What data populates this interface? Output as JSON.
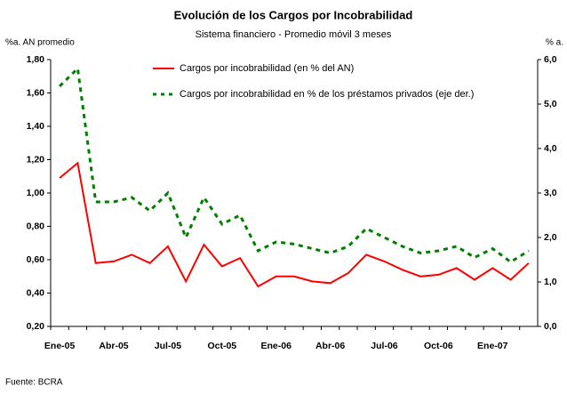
{
  "chart_data": {
    "type": "line",
    "title": "Evolución de los Cargos por Incobrabilidad",
    "subtitle": "Sistema financiero - Promedio móvil 3 meses",
    "y_label": "%a. AN promedio",
    "y2_label": "% a.",
    "source": "Fuente: BCRA",
    "categories": [
      "Ene-05",
      null,
      null,
      "Abr-05",
      null,
      null,
      "Jul-05",
      null,
      null,
      "Oct-05",
      null,
      null,
      "Ene-06",
      null,
      null,
      "Abr-06",
      null,
      null,
      "Jul-06",
      null,
      null,
      "Oct-06",
      null,
      null,
      "Ene-07",
      null,
      null
    ],
    "series": [
      {
        "name": "Cargos por incobrabilidad (en % del AN)",
        "color": "#ff0000",
        "dash": "solid",
        "values": [
          1.09,
          1.18,
          0.58,
          0.59,
          0.63,
          0.58,
          0.68,
          0.47,
          0.69,
          0.56,
          0.61,
          0.44,
          0.5,
          0.5,
          0.47,
          0.46,
          0.52,
          0.63,
          0.59,
          0.54,
          0.5,
          0.51,
          0.55,
          0.48,
          0.55,
          0.48,
          0.58
        ]
      },
      {
        "name": "Cargos por incobrabilidad en % de los préstamos privados (eje der.)",
        "color": "#008000",
        "dash": "dashed",
        "axis": "y2",
        "values": [
          5.4,
          5.8,
          2.8,
          2.8,
          2.9,
          2.6,
          3.0,
          2.0,
          2.9,
          2.3,
          2.5,
          1.7,
          1.9,
          1.85,
          1.75,
          1.65,
          1.8,
          2.2,
          2.0,
          1.8,
          1.65,
          1.7,
          1.8,
          1.55,
          1.75,
          1.45,
          1.7
        ]
      }
    ],
    "ylim": [
      0.2,
      1.8
    ],
    "yticks": [
      {
        "value": 0.2,
        "label": "0,20"
      },
      {
        "value": 0.4,
        "label": "0,40"
      },
      {
        "value": 0.6,
        "label": "0,60"
      },
      {
        "value": 0.8,
        "label": "0,80"
      },
      {
        "value": 1.0,
        "label": "1,00"
      },
      {
        "value": 1.2,
        "label": "1,20"
      },
      {
        "value": 1.4,
        "label": "1,40"
      },
      {
        "value": 1.6,
        "label": "1,60"
      },
      {
        "value": 1.8,
        "label": "1,80"
      }
    ],
    "y2lim": [
      0,
      6
    ],
    "y2ticks": [
      {
        "value": 0,
        "label": "0,0"
      },
      {
        "value": 1,
        "label": "1,0"
      },
      {
        "value": 2,
        "label": "2,0"
      },
      {
        "value": 3,
        "label": "3,0"
      },
      {
        "value": 4,
        "label": "4,0"
      },
      {
        "value": 5,
        "label": "5,0"
      },
      {
        "value": 6,
        "label": "6,0"
      }
    ],
    "grid": false,
    "legend": "top"
  }
}
